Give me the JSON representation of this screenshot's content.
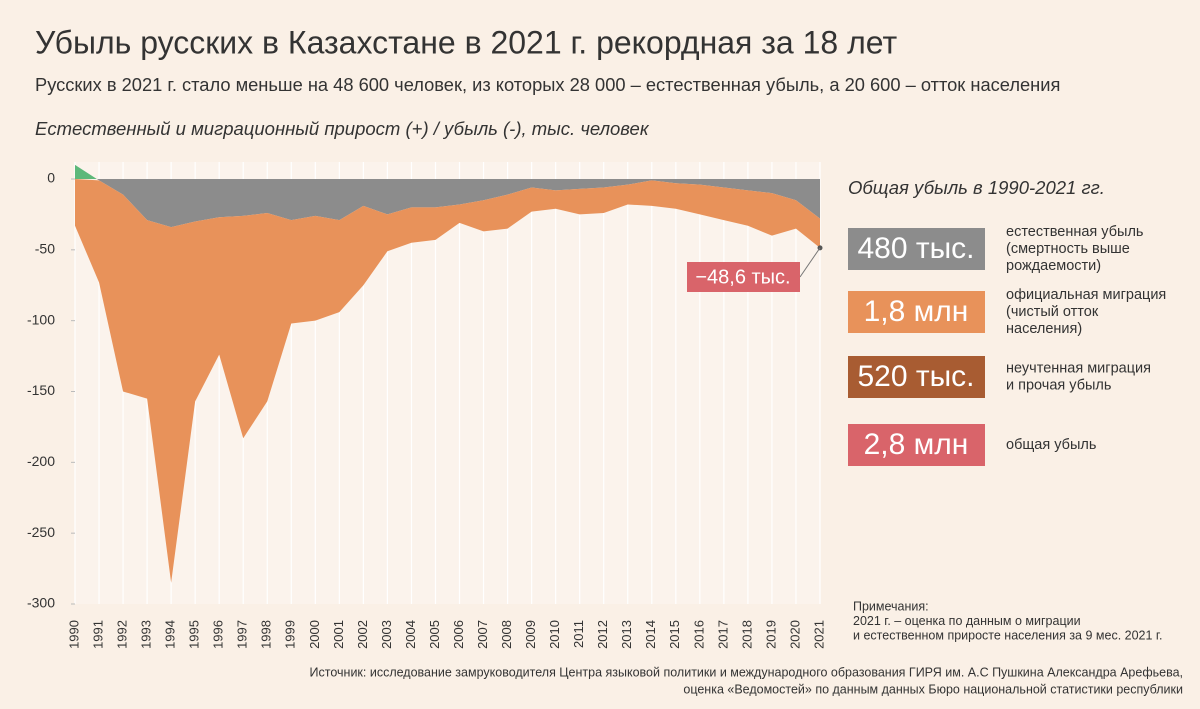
{
  "chart_data": {
    "type": "stacked_area",
    "title": "Убыль русских в Казахстане в 2021 г. рекордная за 18 лет",
    "subtitle": "Русских в 2021 г. стало меньше на 48 600 человек, из которых 28 000 – естественная убыль, а 20 600 – отток населения",
    "y_label": "Естественный и миграционный прирост (+) / убыль (-), тыс. человек",
    "x": [
      1990,
      1991,
      1992,
      1993,
      1994,
      1995,
      1996,
      1997,
      1998,
      1999,
      2000,
      2001,
      2002,
      2003,
      2004,
      2005,
      2006,
      2007,
      2008,
      2009,
      2010,
      2011,
      2012,
      2013,
      2014,
      2015,
      2016,
      2017,
      2018,
      2019,
      2020,
      2021
    ],
    "xlim": [
      1990,
      2021
    ],
    "ylim": [
      -300,
      12
    ],
    "yticks": [
      0,
      -50,
      -100,
      -150,
      -200,
      -250,
      -300
    ],
    "series": [
      {
        "name": "естественный прирост",
        "color": "#8c8c8c",
        "positive_color": "#5cb87a",
        "values": [
          10,
          -1,
          -11,
          -29,
          -34,
          -30,
          -27,
          -26,
          -24,
          -29,
          -26,
          -29,
          -19,
          -25,
          -20,
          -20,
          -18,
          -15,
          -11,
          -6,
          -8,
          -7,
          -6,
          -4,
          -1,
          -3,
          -4,
          -6,
          -8,
          -10,
          -15,
          -28
        ]
      },
      {
        "name": "миграционный прирост",
        "color": "#e8925a",
        "values": [
          -33,
          -72,
          -139,
          -126,
          -251,
          -127,
          -97,
          -157,
          -133,
          -73,
          -74,
          -65,
          -56,
          -26,
          -25,
          -23,
          -13,
          -22,
          -24,
          -17,
          -13,
          -18,
          -18,
          -14,
          -18,
          -18,
          -21,
          -23,
          -25,
          -30,
          -20,
          -20.6
        ]
      }
    ],
    "annotation": "−48,6 тыс.",
    "summary": {
      "title": "Общая убыль в 1990-2021 гг.",
      "items": [
        {
          "value": "480 тыс.",
          "color": "#8c8c8c",
          "label": [
            "естественная убыль",
            "(смертность выше",
            "рождаемости)"
          ]
        },
        {
          "value": "1,8 млн",
          "color": "#e8925a",
          "label": [
            "официальная миграция",
            "(чистый отток",
            "населения)"
          ]
        },
        {
          "value": "520 тыс.",
          "color": "#a85c32",
          "label": [
            "неучтенная миграция",
            "и прочая убыль"
          ]
        },
        {
          "value": "2,8 млн",
          "color": "#d9646a",
          "label": [
            "общая убыль"
          ]
        }
      ]
    },
    "notes": [
      "Примечания:",
      "2021 г. – оценка по данным о миграции",
      "и естественном приросте населения за 9 мес. 2021 г."
    ],
    "source": [
      "Источник: исследование замруководителя Центра языковой политики и международного образования ГИРЯ им. А.С Пушкина Александра Арефьева,",
      "оценка «Ведомостей» по данным данных Бюро национальной статистики республики"
    ]
  }
}
